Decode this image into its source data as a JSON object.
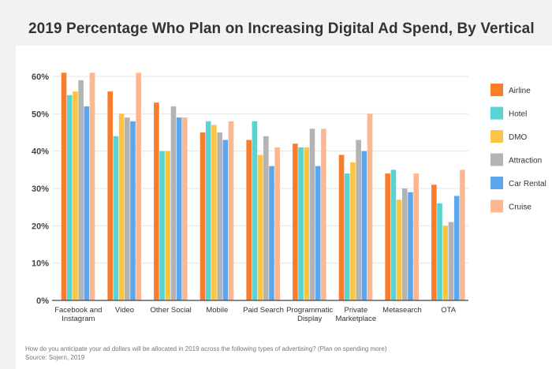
{
  "chart_data": {
    "type": "bar",
    "title": "2019 Percentage Who Plan on Increasing Digital Ad Spend, By Vertical",
    "xlabel": "",
    "ylabel": "",
    "categories": [
      "Facebook and Instagram",
      "Video",
      "Other Social",
      "Mobile",
      "Paid Search",
      "Programmatic Display",
      "Private Marketplace",
      "Metasearch",
      "OTA"
    ],
    "category_lines": [
      [
        "Facebook and",
        "Instagram"
      ],
      [
        "Video"
      ],
      [
        "Other Social"
      ],
      [
        "Mobile"
      ],
      [
        "Paid Search"
      ],
      [
        "Programmatic",
        "Display"
      ],
      [
        "Private",
        "Marketplace"
      ],
      [
        "Metasearch"
      ],
      [
        "OTA"
      ]
    ],
    "series": [
      {
        "name": "Airline",
        "color": "#fa7d2c",
        "values": [
          61,
          56,
          53,
          45,
          43,
          42,
          39,
          34,
          31
        ]
      },
      {
        "name": "Hotel",
        "color": "#5ad3d3",
        "values": [
          55,
          44,
          40,
          48,
          48,
          41,
          34,
          35,
          26
        ]
      },
      {
        "name": "DMO",
        "color": "#fcc445",
        "values": [
          56,
          50,
          40,
          47,
          39,
          41,
          37,
          27,
          20
        ]
      },
      {
        "name": "Attraction",
        "color": "#b3b3b3",
        "values": [
          59,
          49,
          52,
          45,
          44,
          46,
          43,
          30,
          21
        ]
      },
      {
        "name": "Car Rental",
        "color": "#5ba7ee",
        "values": [
          52,
          48,
          49,
          43,
          36,
          36,
          40,
          29,
          28
        ]
      },
      {
        "name": "Cruise",
        "color": "#fdb892",
        "values": [
          61,
          61,
          49,
          48,
          41,
          46,
          50,
          34,
          35
        ]
      }
    ],
    "ylim": [
      0,
      60
    ],
    "yticks": [
      0,
      10,
      20,
      30,
      40,
      50,
      60
    ],
    "ytick_labels": [
      "0%",
      "10%",
      "20%",
      "30%",
      "40%",
      "50%",
      "60%"
    ],
    "grid": true,
    "legend_position": "right"
  },
  "footnote": "How do you anticipate your ad dollars will be allocated in 2019 across the following types of advertising? (Plan on spending more)",
  "source": "Source: Sojern, 2019"
}
